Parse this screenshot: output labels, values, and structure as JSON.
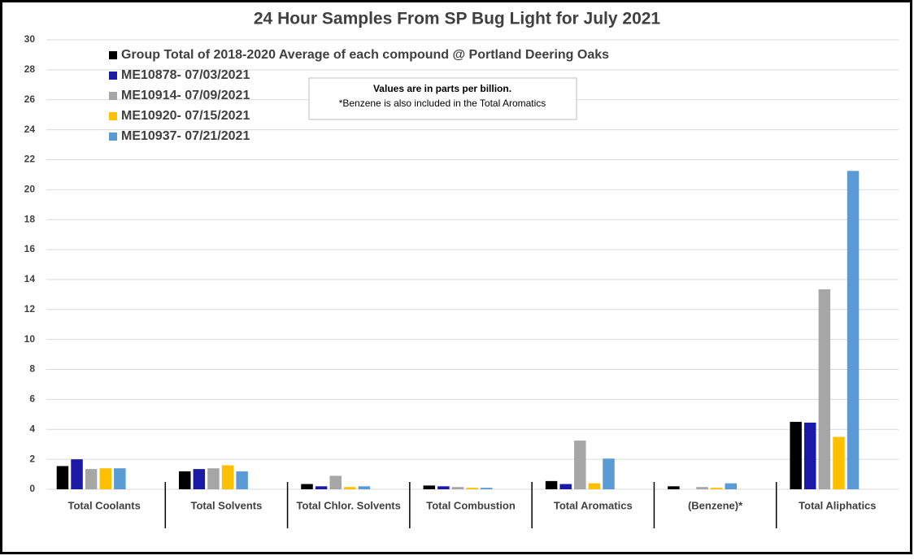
{
  "chart_data": {
    "type": "bar",
    "title": "24 Hour Samples From SP Bug Light for July 2021",
    "note_title": "Values are in parts per billion.",
    "note_text": "*Benzene is also included in the Total Aromatics",
    "categories": [
      "Total Coolants",
      "Total Solvents",
      "Total Chlor. Solvents",
      "Total Combustion",
      "Total Aromatics",
      "(Benzene)*",
      "Total Aliphatics"
    ],
    "series": [
      {
        "name": "Group Total of 2018-2020 Average of each compound @ Portland Deering Oaks",
        "color": "#000000",
        "values": [
          1.55,
          1.2,
          0.35,
          0.25,
          0.55,
          0.2,
          4.5
        ]
      },
      {
        "name": "ME10878- 07/03/2021",
        "color": "#1a1aa6",
        "values": [
          2.0,
          1.35,
          0.2,
          0.2,
          0.35,
          0,
          4.45
        ]
      },
      {
        "name": "ME10914- 07/09/2021",
        "color": "#a6a6a6",
        "values": [
          1.35,
          1.4,
          0.9,
          0.15,
          3.25,
          0.15,
          13.35
        ]
      },
      {
        "name": "ME10920- 07/15/2021",
        "color": "#ffc000",
        "values": [
          1.4,
          1.6,
          0.15,
          0.1,
          0.4,
          0.1,
          3.5
        ]
      },
      {
        "name": "ME10937- 07/21/2021",
        "color": "#5b9bd5",
        "values": [
          1.4,
          1.2,
          0.2,
          0.1,
          2.05,
          0.4,
          21.25
        ]
      }
    ],
    "ylim": [
      0,
      30
    ],
    "yticks": [
      0,
      2,
      4,
      6,
      8,
      10,
      12,
      14,
      16,
      18,
      20,
      22,
      24,
      26,
      28,
      30
    ],
    "grid": true
  }
}
